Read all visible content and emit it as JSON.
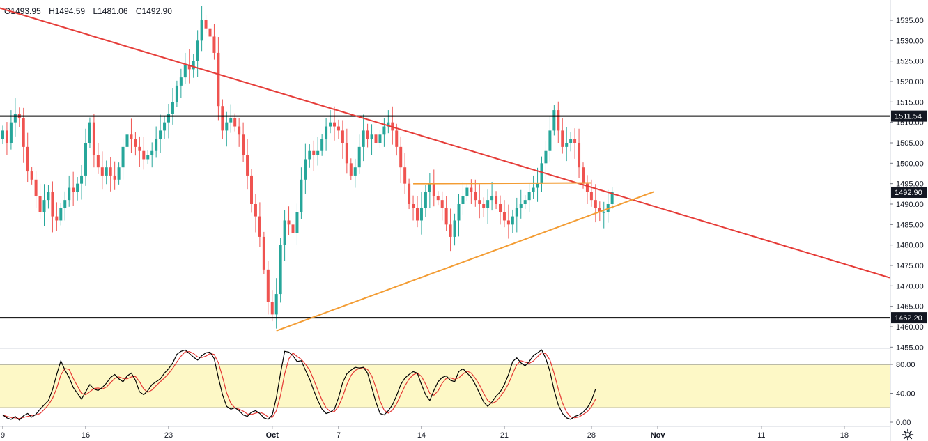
{
  "ohlc": {
    "open": "O1493.95",
    "high": "H1494.59",
    "low": "L1481.06",
    "close": "C1492.90"
  },
  "chart_data": [
    {
      "type": "candlestick",
      "title": "",
      "ylim": [
        1455,
        1538
      ],
      "y_ticks": [
        "1535.00",
        "1530.00",
        "1525.00",
        "1520.00",
        "1515.00",
        "1510.00",
        "1505.00",
        "1500.00",
        "1495.00",
        "1490.00",
        "1485.00",
        "1480.00",
        "1475.00",
        "1470.00",
        "1465.00",
        "1460.00",
        "1455.00"
      ],
      "x_ticks": [
        "9",
        "16",
        "23",
        "Oct",
        "7",
        "14",
        "21",
        "28",
        "Nov",
        "11",
        "18"
      ],
      "price_labels": [
        {
          "text": "1511.54",
          "value": 1511.54,
          "style": "dark"
        },
        {
          "text": "1492.90",
          "value": 1492.9,
          "style": "dark"
        },
        {
          "text": "1462.20",
          "value": 1462.2,
          "style": "dark"
        }
      ],
      "horizontal_lines": [
        {
          "value": 1511.54,
          "color": "#000000"
        },
        {
          "value": 1462.2,
          "color": "#000000"
        }
      ],
      "trend_lines": [
        {
          "name": "descending resistance",
          "color": "#e53935",
          "from": {
            "bar": -4,
            "value": 1539
          },
          "to": {
            "bar": 216,
            "value": 1472
          }
        },
        {
          "name": "ascending support",
          "color": "#f39c33",
          "from": {
            "bar": 66,
            "value": 1459
          },
          "to": {
            "bar": 157,
            "value": 1493
          }
        },
        {
          "name": "horizontal resistance",
          "color": "#f39c33",
          "from": {
            "bar": 99,
            "value": 1495
          },
          "to": {
            "bar": 142,
            "value": 1495.2
          }
        }
      ],
      "candles_close": [
        1508,
        1505,
        1510,
        1512,
        1511,
        1504,
        1498,
        1496,
        1492,
        1488,
        1491,
        1493,
        1487,
        1486,
        1489,
        1491,
        1494,
        1493,
        1495,
        1497,
        1505,
        1510,
        1502,
        1499,
        1497,
        1499,
        1497,
        1496,
        1499,
        1504,
        1507,
        1506,
        1504,
        1503,
        1501,
        1502,
        1503,
        1506,
        1508,
        1510,
        1512,
        1515,
        1519,
        1521,
        1524,
        1523,
        1525,
        1530,
        1535,
        1533,
        1531,
        1527,
        1514,
        1508,
        1510,
        1511,
        1509,
        1507,
        1502,
        1497,
        1490,
        1487,
        1482,
        1474,
        1466,
        1463,
        1468,
        1480,
        1486,
        1485,
        1483,
        1488,
        1496,
        1501,
        1503,
        1502,
        1503,
        1506,
        1509,
        1510,
        1509,
        1508,
        1505,
        1500,
        1497,
        1499,
        1504,
        1508,
        1506,
        1507,
        1505,
        1507,
        1509,
        1510,
        1508,
        1504,
        1499,
        1495,
        1490,
        1489,
        1486,
        1489,
        1493,
        1495,
        1492,
        1491,
        1489,
        1485,
        1482,
        1486,
        1490,
        1492,
        1494,
        1493,
        1491,
        1490,
        1489,
        1491,
        1492,
        1490,
        1488,
        1486,
        1485,
        1487,
        1489,
        1490,
        1491,
        1493,
        1494,
        1495,
        1500,
        1503,
        1508,
        1513,
        1508,
        1504,
        1505,
        1506,
        1505,
        1499,
        1495,
        1493,
        1491,
        1489,
        1488,
        1488,
        1490,
        1492.9
      ],
      "stochastic": {
        "bands": {
          "upper": 80,
          "lower": 20
        },
        "ylim": [
          0,
          105
        ],
        "ticks": [
          "80.00",
          "40.00",
          "0.00"
        ],
        "k_color": "#000000",
        "d_color": "#e53935",
        "k": [
          10,
          6,
          4,
          8,
          3,
          9,
          12,
          7,
          11,
          18,
          24,
          30,
          45,
          66,
          85,
          72,
          62,
          48,
          40,
          32,
          42,
          52,
          46,
          44,
          48,
          54,
          62,
          66,
          60,
          56,
          64,
          68,
          58,
          42,
          38,
          44,
          52,
          56,
          60,
          68,
          74,
          82,
          94,
          98,
          100,
          95,
          90,
          86,
          92,
          96,
          97,
          88,
          62,
          38,
          22,
          18,
          20,
          16,
          10,
          8,
          14,
          16,
          12,
          6,
          4,
          10,
          34,
          68,
          98,
          97,
          92,
          84,
          85,
          72,
          60,
          44,
          30,
          18,
          12,
          14,
          18,
          34,
          55,
          67,
          72,
          76,
          75,
          76,
          68,
          48,
          28,
          12,
          10,
          16,
          24,
          37,
          52,
          61,
          66,
          70,
          68,
          52,
          38,
          30,
          44,
          56,
          62,
          64,
          58,
          56,
          70,
          74,
          68,
          62,
          52,
          40,
          28,
          22,
          28,
          36,
          42,
          52,
          66,
          84,
          89,
          82,
          78,
          84,
          92,
          96,
          100,
          88,
          70,
          44,
          24,
          12,
          6,
          4,
          8,
          10,
          14,
          20,
          30,
          46
        ]
      }
    }
  ]
}
